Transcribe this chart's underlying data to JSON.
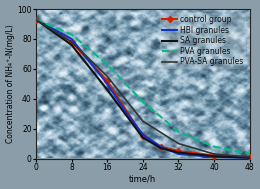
{
  "title": "",
  "xlabel": "time/h",
  "ylabel": "Concentration of NH₄⁺-N(mg/L)",
  "xlim": [
    0,
    48
  ],
  "ylim": [
    0,
    100
  ],
  "xticks": [
    0,
    8,
    16,
    24,
    32,
    40,
    48
  ],
  "yticks": [
    0,
    20,
    40,
    60,
    80,
    100
  ],
  "series": [
    {
      "label": "control group",
      "color": "#cc2200",
      "linestyle": "-",
      "linewidth": 1.5,
      "marker": "D",
      "markersize": 3,
      "x": [
        0,
        8,
        16,
        24,
        28,
        32,
        40,
        48
      ],
      "y": [
        93,
        78,
        52,
        15,
        8,
        5,
        2,
        1
      ]
    },
    {
      "label": "HBl granules",
      "color": "#1133cc",
      "linestyle": "-",
      "linewidth": 1.5,
      "marker": null,
      "markersize": 0,
      "x": [
        0,
        8,
        16,
        20,
        24,
        28,
        32,
        40,
        48
      ],
      "y": [
        93,
        80,
        50,
        32,
        16,
        8,
        3,
        1,
        0.5
      ]
    },
    {
      "label": "SA granules",
      "color": "#111111",
      "linestyle": "-",
      "linewidth": 1.5,
      "marker": null,
      "markersize": 0,
      "x": [
        0,
        8,
        16,
        24,
        28,
        32,
        40,
        48
      ],
      "y": [
        93,
        76,
        46,
        14,
        7,
        4,
        1.5,
        0.5
      ]
    },
    {
      "label": "PVA granules",
      "color": "#00bb88",
      "linestyle": "--",
      "linewidth": 1.5,
      "marker": null,
      "markersize": 0,
      "x": [
        0,
        8,
        16,
        24,
        32,
        40,
        48
      ],
      "y": [
        93,
        83,
        63,
        38,
        18,
        8,
        3
      ]
    },
    {
      "label": "PVA-SA granules",
      "color": "#333333",
      "linestyle": "-",
      "linewidth": 1.2,
      "marker": null,
      "markersize": 0,
      "x": [
        0,
        8,
        16,
        24,
        32,
        40,
        48
      ],
      "y": [
        93,
        78,
        55,
        25,
        10,
        3,
        1
      ]
    }
  ],
  "bg_color": "#b0bec5",
  "legend_fontsize": 5.5,
  "axis_fontsize": 6,
  "tick_fontsize": 5.5
}
